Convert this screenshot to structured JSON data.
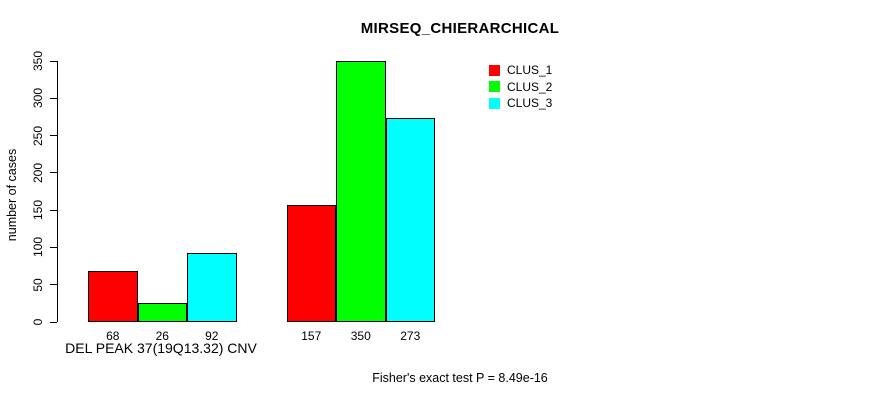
{
  "chart_data": {
    "type": "bar",
    "title": "MIRSEQ_CHIERARCHICAL",
    "ylabel": "number of cases",
    "xlabel": "DEL PEAK 37(19Q13.32) CNV",
    "footnote": "Fisher's exact test P = 8.49e-16",
    "ylim": [
      0,
      350
    ],
    "yticks": [
      0,
      50,
      100,
      150,
      200,
      250,
      300,
      350
    ],
    "categories": [
      "DEL PEAK 37(19Q13.32) CNV",
      ""
    ],
    "series": [
      {
        "name": "CLUS_1",
        "color": "#ff0000",
        "values": [
          68,
          157
        ]
      },
      {
        "name": "CLUS_2",
        "color": "#00ff00",
        "values": [
          26,
          350
        ]
      },
      {
        "name": "CLUS_3",
        "color": "#00ffff",
        "values": [
          92,
          273
        ]
      }
    ],
    "bar_value_labels": [
      [
        68,
        26,
        92
      ],
      [
        157,
        350,
        273
      ]
    ],
    "legend_position": "top-right",
    "grid": false,
    "background_color": "#ffffff",
    "bar_border_color": "#000000",
    "text_color": "#000000"
  }
}
